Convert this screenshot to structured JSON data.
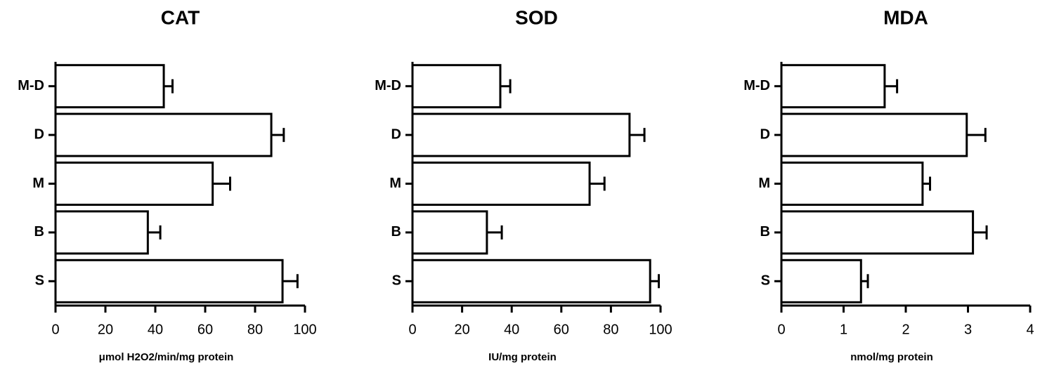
{
  "chart_data": [
    {
      "type": "bar",
      "orientation": "horizontal",
      "title": "CAT",
      "x_label": "μmol H2O2/min/mg protein",
      "categories": [
        "M-D",
        "D",
        "M",
        "B",
        "S"
      ],
      "values": [
        43.4,
        86.5,
        63,
        37,
        91
      ],
      "errors": [
        3.5,
        5,
        7,
        5,
        6
      ],
      "color": "#ffffff",
      "xlim": [
        0,
        100
      ],
      "xticks": [
        0,
        20,
        40,
        60,
        80,
        100
      ]
    },
    {
      "type": "bar",
      "orientation": "horizontal",
      "title": "SOD",
      "x_label": "IU/mg protein",
      "categories": [
        "M-D",
        "D",
        "M",
        "B",
        "S"
      ],
      "values": [
        35.4,
        87.5,
        71.4,
        30,
        95.8
      ],
      "errors": [
        4,
        6,
        6,
        6,
        3.5
      ],
      "color": "#ffffff",
      "xlim": [
        0,
        100
      ],
      "xticks": [
        0,
        20,
        40,
        60,
        80,
        100
      ]
    },
    {
      "type": "bar",
      "orientation": "horizontal",
      "title": "MDA",
      "x_label": "nmol/mg protein",
      "categories": [
        "M-D",
        "D",
        "M",
        "B",
        "S"
      ],
      "values": [
        1.66,
        2.98,
        2.27,
        3.08,
        1.28
      ],
      "errors": [
        0.2,
        0.3,
        0.12,
        0.22,
        0.11
      ],
      "color": "#ffffff",
      "xlim": [
        0,
        4
      ],
      "xticks": [
        0,
        1,
        2,
        3,
        4
      ]
    }
  ]
}
